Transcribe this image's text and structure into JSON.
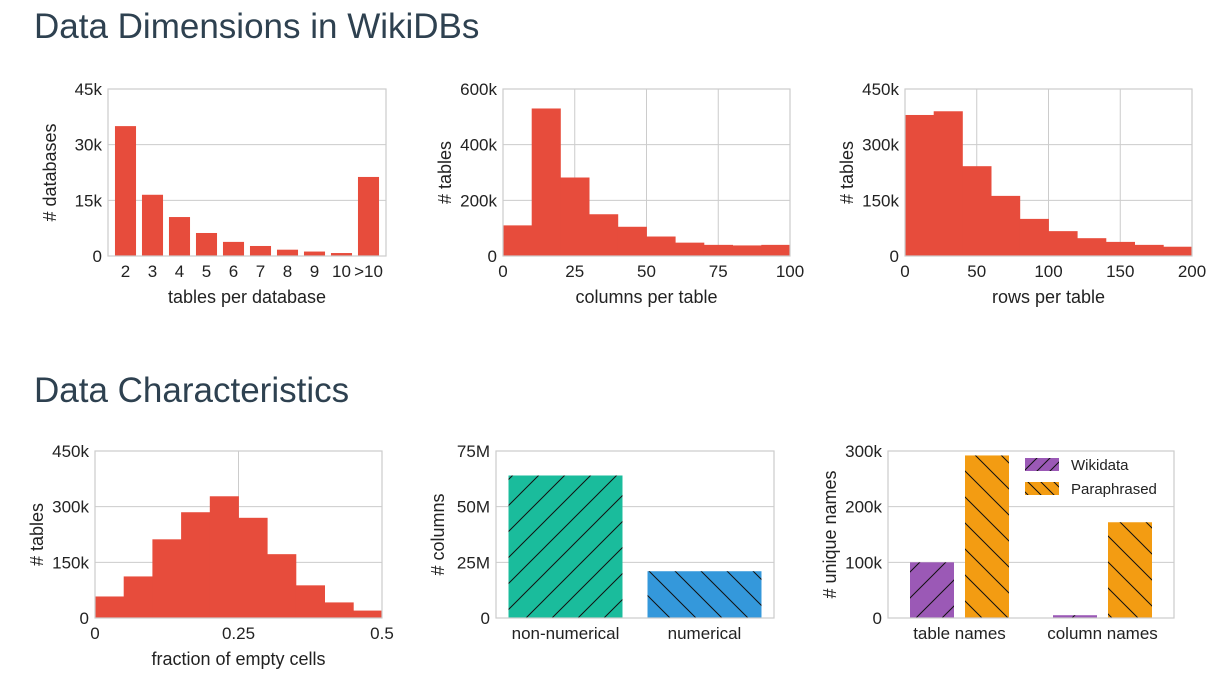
{
  "sections": [
    {
      "title": "Data Dimensions in WikiDBs"
    },
    {
      "title": "Data Characteristics"
    }
  ],
  "colors": {
    "red": "#e74c3c",
    "teal": "#1abc9c",
    "blue": "#3498db",
    "purple": "#9b59b6",
    "orange": "#f39c12",
    "grid": "#cccccc"
  },
  "chart_data": [
    {
      "type": "bar",
      "xlabel": "tables per database",
      "ylabel": "# databases",
      "categories": [
        "2",
        "3",
        "4",
        "5",
        "6",
        "7",
        "8",
        "9",
        "10",
        ">10"
      ],
      "values": [
        35000,
        16500,
        10500,
        6200,
        3800,
        2700,
        1700,
        1200,
        800,
        21300
      ],
      "ylim": [
        0,
        45000
      ],
      "yticks": [
        0,
        15000,
        30000,
        45000
      ],
      "ytick_labels": [
        "0",
        "15k",
        "30k",
        "45k"
      ],
      "grid": true
    },
    {
      "type": "histogram",
      "xlabel": "columns per table",
      "ylabel": "# tables",
      "bin_edges": [
        0,
        10,
        20,
        30,
        40,
        50,
        60,
        70,
        80,
        90,
        100
      ],
      "values": [
        110000,
        530000,
        282000,
        150000,
        105000,
        70000,
        48000,
        40000,
        38000,
        40000
      ],
      "xlim": [
        0,
        100
      ],
      "ylim": [
        0,
        600000
      ],
      "xticks": [
        0,
        25,
        50,
        75,
        100
      ],
      "xtick_labels": [
        "0",
        "25",
        "50",
        "75",
        "100"
      ],
      "yticks": [
        0,
        200000,
        400000,
        600000
      ],
      "ytick_labels": [
        "0",
        "200k",
        "400k",
        "600k"
      ],
      "grid": true
    },
    {
      "type": "histogram",
      "xlabel": "rows per table",
      "ylabel": "# tables",
      "bin_edges": [
        0,
        20,
        40,
        60,
        80,
        100,
        120,
        140,
        160,
        180,
        200
      ],
      "values": [
        380000,
        390000,
        242000,
        162000,
        100000,
        67000,
        48000,
        38000,
        30000,
        25000
      ],
      "xlim": [
        0,
        200
      ],
      "ylim": [
        0,
        450000
      ],
      "xticks": [
        0,
        50,
        100,
        150,
        200
      ],
      "xtick_labels": [
        "0",
        "50",
        "100",
        "150",
        "200"
      ],
      "yticks": [
        0,
        150000,
        300000,
        450000
      ],
      "ytick_labels": [
        "0",
        "150k",
        "300k",
        "450k"
      ],
      "grid": true
    },
    {
      "type": "histogram",
      "xlabel": "fraction of empty cells",
      "ylabel": "# tables",
      "bin_edges": [
        0,
        0.05,
        0.1,
        0.15,
        0.2,
        0.25,
        0.3,
        0.35,
        0.4,
        0.45,
        0.5
      ],
      "values": [
        58000,
        112000,
        212000,
        285000,
        328000,
        270000,
        172000,
        88000,
        42000,
        20000
      ],
      "xlim": [
        0,
        0.5
      ],
      "ylim": [
        0,
        450000
      ],
      "xticks": [
        0,
        0.25,
        0.5
      ],
      "xtick_labels": [
        "0",
        "0.25",
        "0.5"
      ],
      "yticks": [
        0,
        150000,
        300000,
        450000
      ],
      "ytick_labels": [
        "0",
        "150k",
        "300k",
        "450k"
      ],
      "grid": true
    },
    {
      "type": "bar",
      "xlabel": "",
      "ylabel": "# columns",
      "categories": [
        "non-numerical",
        "numerical"
      ],
      "values": [
        64000000,
        21000000
      ],
      "colors": [
        "#1abc9c",
        "#3498db"
      ],
      "hatch": [
        "forward",
        "back"
      ],
      "ylim": [
        0,
        75000000
      ],
      "yticks": [
        0,
        25000000,
        50000000,
        75000000
      ],
      "ytick_labels": [
        "0",
        "25M",
        "50M",
        "75M"
      ],
      "grid": true
    },
    {
      "type": "bar",
      "xlabel": "",
      "ylabel": "# unique names",
      "categories": [
        "table names",
        "column names"
      ],
      "series": [
        {
          "name": "Wikidata",
          "values": [
            100000,
            5000
          ],
          "color": "#9b59b6",
          "hatch": "forward"
        },
        {
          "name": "Paraphrased",
          "values": [
            292000,
            172000
          ],
          "color": "#f39c12",
          "hatch": "back"
        }
      ],
      "ylim": [
        0,
        300000
      ],
      "yticks": [
        0,
        100000,
        200000,
        300000
      ],
      "ytick_labels": [
        "0",
        "100k",
        "200k",
        "300k"
      ],
      "legend": "top-right",
      "grid": true
    }
  ]
}
